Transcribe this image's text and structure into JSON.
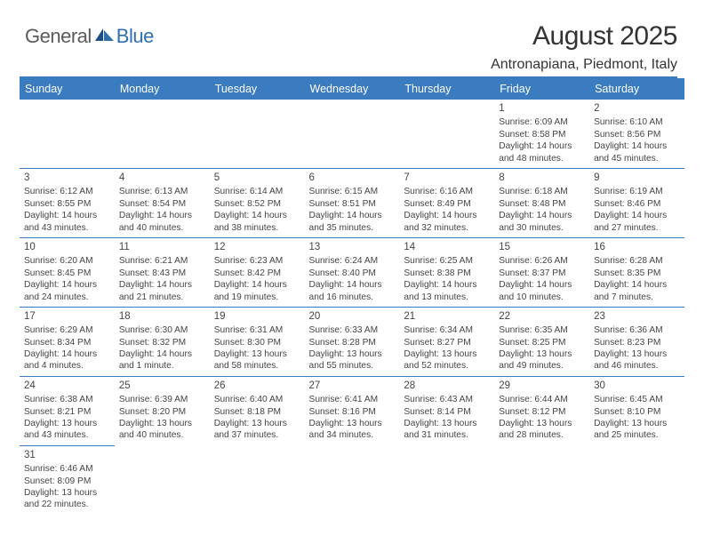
{
  "logo": {
    "text1": "General",
    "text2": "Blue"
  },
  "header": {
    "title": "August 2025",
    "subtitle": "Antronapiana, Piedmont, Italy"
  },
  "colors": {
    "header_bg": "#3b7bbf",
    "header_text": "#ffffff",
    "border": "#3b7bbf",
    "body_text": "#444444",
    "logo_gray": "#5a5a5a",
    "logo_blue": "#2f6fad"
  },
  "dayHeaders": [
    "Sunday",
    "Monday",
    "Tuesday",
    "Wednesday",
    "Thursday",
    "Friday",
    "Saturday"
  ],
  "weeks": [
    [
      null,
      null,
      null,
      null,
      null,
      {
        "n": "1",
        "sr": "6:09 AM",
        "ss": "8:58 PM",
        "dl": "14 hours and 48 minutes."
      },
      {
        "n": "2",
        "sr": "6:10 AM",
        "ss": "8:56 PM",
        "dl": "14 hours and 45 minutes."
      }
    ],
    [
      {
        "n": "3",
        "sr": "6:12 AM",
        "ss": "8:55 PM",
        "dl": "14 hours and 43 minutes."
      },
      {
        "n": "4",
        "sr": "6:13 AM",
        "ss": "8:54 PM",
        "dl": "14 hours and 40 minutes."
      },
      {
        "n": "5",
        "sr": "6:14 AM",
        "ss": "8:52 PM",
        "dl": "14 hours and 38 minutes."
      },
      {
        "n": "6",
        "sr": "6:15 AM",
        "ss": "8:51 PM",
        "dl": "14 hours and 35 minutes."
      },
      {
        "n": "7",
        "sr": "6:16 AM",
        "ss": "8:49 PM",
        "dl": "14 hours and 32 minutes."
      },
      {
        "n": "8",
        "sr": "6:18 AM",
        "ss": "8:48 PM",
        "dl": "14 hours and 30 minutes."
      },
      {
        "n": "9",
        "sr": "6:19 AM",
        "ss": "8:46 PM",
        "dl": "14 hours and 27 minutes."
      }
    ],
    [
      {
        "n": "10",
        "sr": "6:20 AM",
        "ss": "8:45 PM",
        "dl": "14 hours and 24 minutes."
      },
      {
        "n": "11",
        "sr": "6:21 AM",
        "ss": "8:43 PM",
        "dl": "14 hours and 21 minutes."
      },
      {
        "n": "12",
        "sr": "6:23 AM",
        "ss": "8:42 PM",
        "dl": "14 hours and 19 minutes."
      },
      {
        "n": "13",
        "sr": "6:24 AM",
        "ss": "8:40 PM",
        "dl": "14 hours and 16 minutes."
      },
      {
        "n": "14",
        "sr": "6:25 AM",
        "ss": "8:38 PM",
        "dl": "14 hours and 13 minutes."
      },
      {
        "n": "15",
        "sr": "6:26 AM",
        "ss": "8:37 PM",
        "dl": "14 hours and 10 minutes."
      },
      {
        "n": "16",
        "sr": "6:28 AM",
        "ss": "8:35 PM",
        "dl": "14 hours and 7 minutes."
      }
    ],
    [
      {
        "n": "17",
        "sr": "6:29 AM",
        "ss": "8:34 PM",
        "dl": "14 hours and 4 minutes."
      },
      {
        "n": "18",
        "sr": "6:30 AM",
        "ss": "8:32 PM",
        "dl": "14 hours and 1 minute."
      },
      {
        "n": "19",
        "sr": "6:31 AM",
        "ss": "8:30 PM",
        "dl": "13 hours and 58 minutes."
      },
      {
        "n": "20",
        "sr": "6:33 AM",
        "ss": "8:28 PM",
        "dl": "13 hours and 55 minutes."
      },
      {
        "n": "21",
        "sr": "6:34 AM",
        "ss": "8:27 PM",
        "dl": "13 hours and 52 minutes."
      },
      {
        "n": "22",
        "sr": "6:35 AM",
        "ss": "8:25 PM",
        "dl": "13 hours and 49 minutes."
      },
      {
        "n": "23",
        "sr": "6:36 AM",
        "ss": "8:23 PM",
        "dl": "13 hours and 46 minutes."
      }
    ],
    [
      {
        "n": "24",
        "sr": "6:38 AM",
        "ss": "8:21 PM",
        "dl": "13 hours and 43 minutes."
      },
      {
        "n": "25",
        "sr": "6:39 AM",
        "ss": "8:20 PM",
        "dl": "13 hours and 40 minutes."
      },
      {
        "n": "26",
        "sr": "6:40 AM",
        "ss": "8:18 PM",
        "dl": "13 hours and 37 minutes."
      },
      {
        "n": "27",
        "sr": "6:41 AM",
        "ss": "8:16 PM",
        "dl": "13 hours and 34 minutes."
      },
      {
        "n": "28",
        "sr": "6:43 AM",
        "ss": "8:14 PM",
        "dl": "13 hours and 31 minutes."
      },
      {
        "n": "29",
        "sr": "6:44 AM",
        "ss": "8:12 PM",
        "dl": "13 hours and 28 minutes."
      },
      {
        "n": "30",
        "sr": "6:45 AM",
        "ss": "8:10 PM",
        "dl": "13 hours and 25 minutes."
      }
    ],
    [
      {
        "n": "31",
        "sr": "6:46 AM",
        "ss": "8:09 PM",
        "dl": "13 hours and 22 minutes."
      },
      null,
      null,
      null,
      null,
      null,
      null
    ]
  ],
  "labels": {
    "sunrise": "Sunrise: ",
    "sunset": "Sunset: ",
    "daylight": "Daylight: "
  }
}
